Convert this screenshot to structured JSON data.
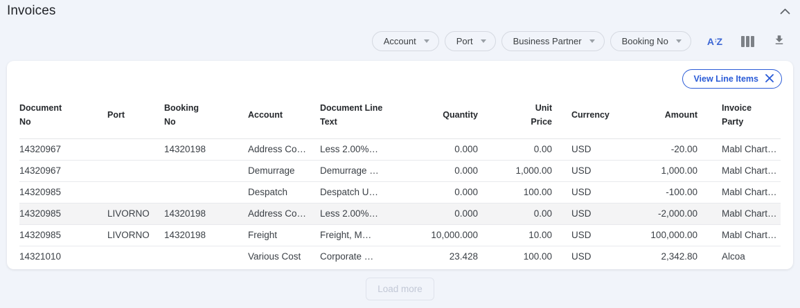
{
  "header": {
    "title": "Invoices"
  },
  "filters": {
    "dropdowns": [
      {
        "id": "account",
        "label": "Account"
      },
      {
        "id": "port",
        "label": "Port"
      },
      {
        "id": "business-partner",
        "label": "Business Partner"
      },
      {
        "id": "booking-no",
        "label": "Booking No"
      }
    ],
    "icons": [
      "sort-alpha-icon",
      "columns-icon",
      "download-icon"
    ]
  },
  "panel": {
    "view_line_items_label": "View Line Items"
  },
  "table": {
    "columns": [
      {
        "label": "Document No",
        "align": "left"
      },
      {
        "label": "Port",
        "align": "left"
      },
      {
        "label": "Booking No",
        "align": "left"
      },
      {
        "label": "Account",
        "align": "left"
      },
      {
        "label": "Document Line Text",
        "align": "left"
      },
      {
        "label": "Quantity",
        "align": "right"
      },
      {
        "label": "Unit Price",
        "align": "right"
      },
      {
        "label": "Currency",
        "align": "left"
      },
      {
        "label": "Amount",
        "align": "right"
      },
      {
        "label": "Invoice Party",
        "align": "left"
      }
    ],
    "rows": [
      [
        "14320967",
        "",
        "14320198",
        "Address Co…",
        "Less 2.00%…",
        "0.000",
        "0.00",
        "USD",
        "-20.00",
        "Mabl Chart…"
      ],
      [
        "14320967",
        "",
        "",
        "Demurrage",
        "Demurrage …",
        "0.000",
        "1,000.00",
        "USD",
        "1,000.00",
        "Mabl Chart…"
      ],
      [
        "14320985",
        "",
        "",
        "Despatch",
        "Despatch U…",
        "0.000",
        "100.00",
        "USD",
        "-100.00",
        "Mabl Chart…"
      ],
      [
        "14320985",
        "LIVORNO",
        "14320198",
        "Address Co…",
        "Less 2.00%…",
        "0.000",
        "0.00",
        "USD",
        "-2,000.00",
        "Mabl Chart…"
      ],
      [
        "14320985",
        "LIVORNO",
        "14320198",
        "Freight",
        "Freight, M…",
        "10,000.000",
        "10.00",
        "USD",
        "100,000.00",
        "Mabl Chart…"
      ],
      [
        "14321010",
        "",
        "",
        "Various Cost",
        "Corporate …",
        "23.428",
        "100.00",
        "USD",
        "2,342.80",
        "Alcoa"
      ]
    ],
    "highlighted_row_index": 3
  },
  "load_more_label": "Load more",
  "colors": {
    "accent_blue": "#2a5bd7",
    "page_background": "#f1f4fa",
    "highlight_row": "#f4f4f5",
    "icon_gray": "#7d8187"
  }
}
